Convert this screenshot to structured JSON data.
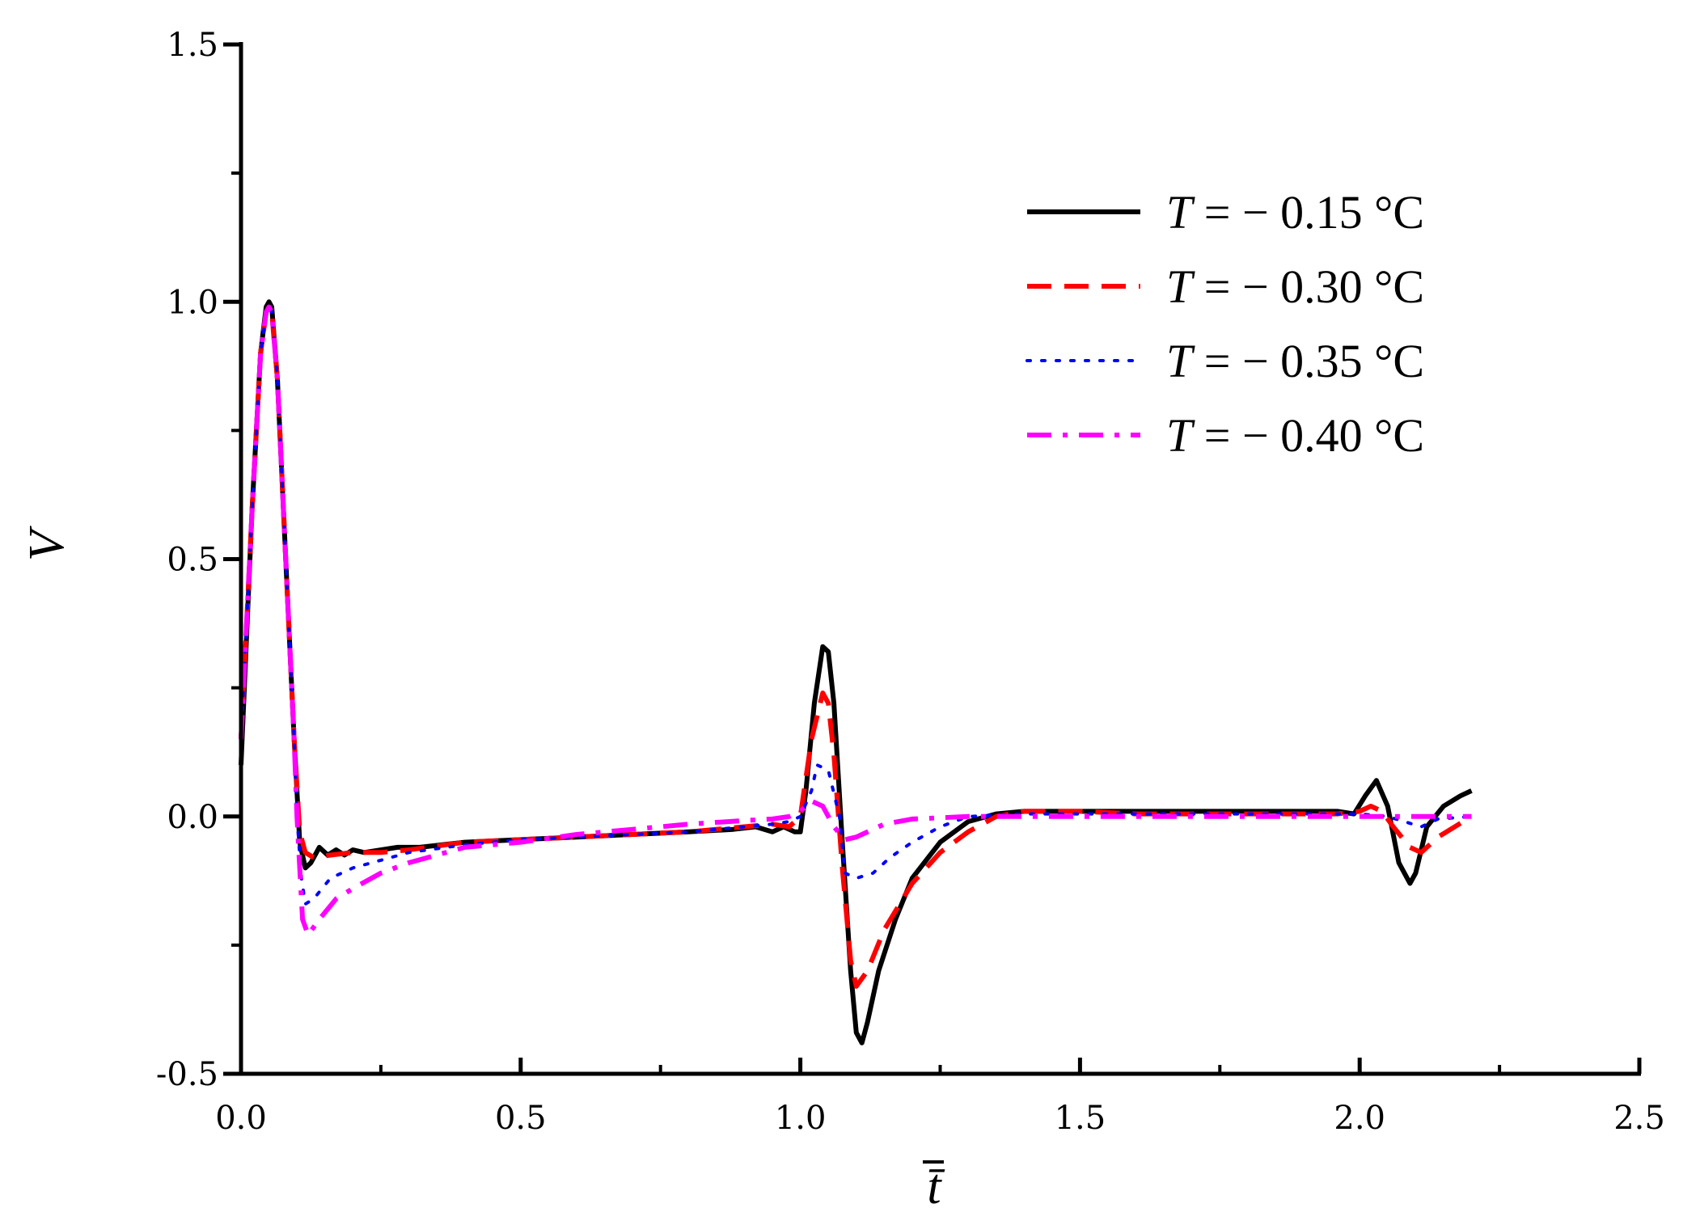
{
  "chart_data": {
    "type": "line",
    "xlabel": "t̄",
    "ylabel": "V",
    "xlim": [
      0.0,
      2.5
    ],
    "ylim": [
      -0.5,
      1.5
    ],
    "x_ticks": [
      "0.0",
      "0.5",
      "1.0",
      "1.5",
      "2.0",
      "2.5"
    ],
    "y_ticks": [
      "-0.5",
      "0.0",
      "0.5",
      "1.0",
      "1.5"
    ],
    "grid": false,
    "legend_position": "top-right",
    "series": [
      {
        "name": "T = − 0.15 °C",
        "name_var": "T",
        "name_rest": " = − 0.15 °C",
        "color": "#000000",
        "style": "solid",
        "x": [
          0.0,
          0.02,
          0.035,
          0.045,
          0.05,
          0.055,
          0.065,
          0.08,
          0.095,
          0.105,
          0.115,
          0.125,
          0.14,
          0.155,
          0.17,
          0.185,
          0.2,
          0.22,
          0.25,
          0.28,
          0.32,
          0.4,
          0.5,
          0.6,
          0.7,
          0.8,
          0.88,
          0.92,
          0.95,
          0.97,
          0.99,
          1.0,
          1.01,
          1.025,
          1.04,
          1.05,
          1.06,
          1.075,
          1.09,
          1.1,
          1.11,
          1.12,
          1.14,
          1.17,
          1.2,
          1.25,
          1.3,
          1.35,
          1.4,
          1.5,
          1.6,
          1.7,
          1.8,
          1.9,
          1.96,
          1.99,
          2.01,
          2.03,
          2.05,
          2.07,
          2.09,
          2.1,
          2.12,
          2.15,
          2.18,
          2.2
        ],
        "y": [
          0.1,
          0.6,
          0.9,
          0.99,
          1.0,
          0.99,
          0.85,
          0.5,
          0.15,
          -0.05,
          -0.1,
          -0.09,
          -0.06,
          -0.075,
          -0.065,
          -0.075,
          -0.065,
          -0.07,
          -0.065,
          -0.06,
          -0.06,
          -0.05,
          -0.045,
          -0.04,
          -0.035,
          -0.03,
          -0.025,
          -0.02,
          -0.03,
          -0.02,
          -0.03,
          -0.03,
          0.05,
          0.22,
          0.33,
          0.32,
          0.22,
          -0.05,
          -0.3,
          -0.42,
          -0.44,
          -0.4,
          -0.3,
          -0.2,
          -0.12,
          -0.05,
          -0.01,
          0.005,
          0.01,
          0.01,
          0.01,
          0.01,
          0.01,
          0.01,
          0.01,
          0.005,
          0.04,
          0.07,
          0.02,
          -0.09,
          -0.13,
          -0.11,
          -0.02,
          0.02,
          0.04,
          0.05
        ]
      },
      {
        "name": "T = − 0.30 °C",
        "name_var": "T",
        "name_rest": " = − 0.30 °C",
        "color": "#ff0000",
        "style": "dashed",
        "x": [
          0.0,
          0.02,
          0.035,
          0.045,
          0.05,
          0.055,
          0.065,
          0.08,
          0.095,
          0.105,
          0.115,
          0.13,
          0.16,
          0.2,
          0.25,
          0.3,
          0.4,
          0.5,
          0.6,
          0.7,
          0.8,
          0.9,
          0.95,
          0.98,
          1.0,
          1.02,
          1.04,
          1.05,
          1.06,
          1.075,
          1.09,
          1.1,
          1.12,
          1.15,
          1.2,
          1.25,
          1.3,
          1.35,
          1.4,
          1.5,
          1.6,
          1.8,
          1.96,
          2.0,
          2.02,
          2.04,
          2.06,
          2.09,
          2.11,
          2.14,
          2.2
        ],
        "y": [
          0.15,
          0.6,
          0.9,
          0.98,
          0.99,
          0.98,
          0.85,
          0.5,
          0.15,
          -0.03,
          -0.07,
          -0.08,
          -0.075,
          -0.07,
          -0.07,
          -0.065,
          -0.05,
          -0.045,
          -0.04,
          -0.035,
          -0.03,
          -0.02,
          -0.015,
          -0.02,
          0.0,
          0.15,
          0.24,
          0.22,
          0.12,
          -0.1,
          -0.28,
          -0.33,
          -0.3,
          -0.22,
          -0.13,
          -0.07,
          -0.03,
          0.0,
          0.01,
          0.01,
          0.005,
          0.005,
          0.005,
          0.01,
          0.02,
          0.01,
          -0.02,
          -0.06,
          -0.07,
          -0.04,
          0.0
        ]
      },
      {
        "name": "T = − 0.35 °C",
        "name_var": "T",
        "name_rest": " = − 0.35 °C",
        "color": "#0000ff",
        "style": "dotted",
        "x": [
          0.0,
          0.02,
          0.035,
          0.045,
          0.05,
          0.055,
          0.065,
          0.08,
          0.095,
          0.1,
          0.108,
          0.115,
          0.13,
          0.16,
          0.2,
          0.25,
          0.3,
          0.4,
          0.5,
          0.6,
          0.7,
          0.8,
          0.9,
          0.95,
          0.98,
          1.0,
          1.02,
          1.03,
          1.05,
          1.07,
          1.08,
          1.1,
          1.13,
          1.16,
          1.2,
          1.25,
          1.3,
          1.4,
          1.5,
          1.6,
          1.8,
          2.0,
          2.05,
          2.08,
          2.11,
          2.14,
          2.2
        ],
        "y": [
          0.15,
          0.6,
          0.9,
          0.98,
          0.99,
          0.98,
          0.85,
          0.5,
          0.15,
          0.0,
          -0.12,
          -0.17,
          -0.16,
          -0.12,
          -0.1,
          -0.085,
          -0.07,
          -0.055,
          -0.045,
          -0.04,
          -0.035,
          -0.03,
          -0.02,
          -0.015,
          -0.01,
          0.0,
          0.05,
          0.1,
          0.09,
          0.0,
          -0.11,
          -0.12,
          -0.11,
          -0.08,
          -0.05,
          -0.02,
          0.0,
          0.005,
          0.005,
          0.005,
          0.005,
          0.005,
          0.0,
          -0.01,
          -0.02,
          -0.005,
          0.0
        ]
      },
      {
        "name": "T = − 0.40 °C",
        "name_var": "T",
        "name_rest": " = − 0.40 °C",
        "color": "#ff00ff",
        "style": "dashdot",
        "x": [
          0.0,
          0.02,
          0.035,
          0.045,
          0.05,
          0.055,
          0.065,
          0.08,
          0.095,
          0.1,
          0.105,
          0.11,
          0.12,
          0.14,
          0.17,
          0.2,
          0.25,
          0.3,
          0.4,
          0.5,
          0.6,
          0.7,
          0.8,
          0.9,
          0.95,
          0.98,
          1.0,
          1.02,
          1.04,
          1.06,
          1.08,
          1.1,
          1.15,
          1.2,
          1.3,
          1.4,
          1.5,
          1.6,
          1.8,
          2.0,
          2.2
        ],
        "y": [
          0.15,
          0.6,
          0.9,
          0.98,
          0.99,
          0.98,
          0.85,
          0.5,
          0.15,
          0.0,
          -0.1,
          -0.2,
          -0.23,
          -0.2,
          -0.16,
          -0.14,
          -0.11,
          -0.09,
          -0.06,
          -0.05,
          -0.035,
          -0.025,
          -0.015,
          -0.008,
          -0.005,
          0.0,
          0.01,
          0.03,
          0.02,
          -0.02,
          -0.045,
          -0.04,
          -0.015,
          -0.005,
          0.0,
          0.0,
          0.0,
          0.0,
          0.0,
          0.0,
          0.0
        ]
      }
    ]
  }
}
